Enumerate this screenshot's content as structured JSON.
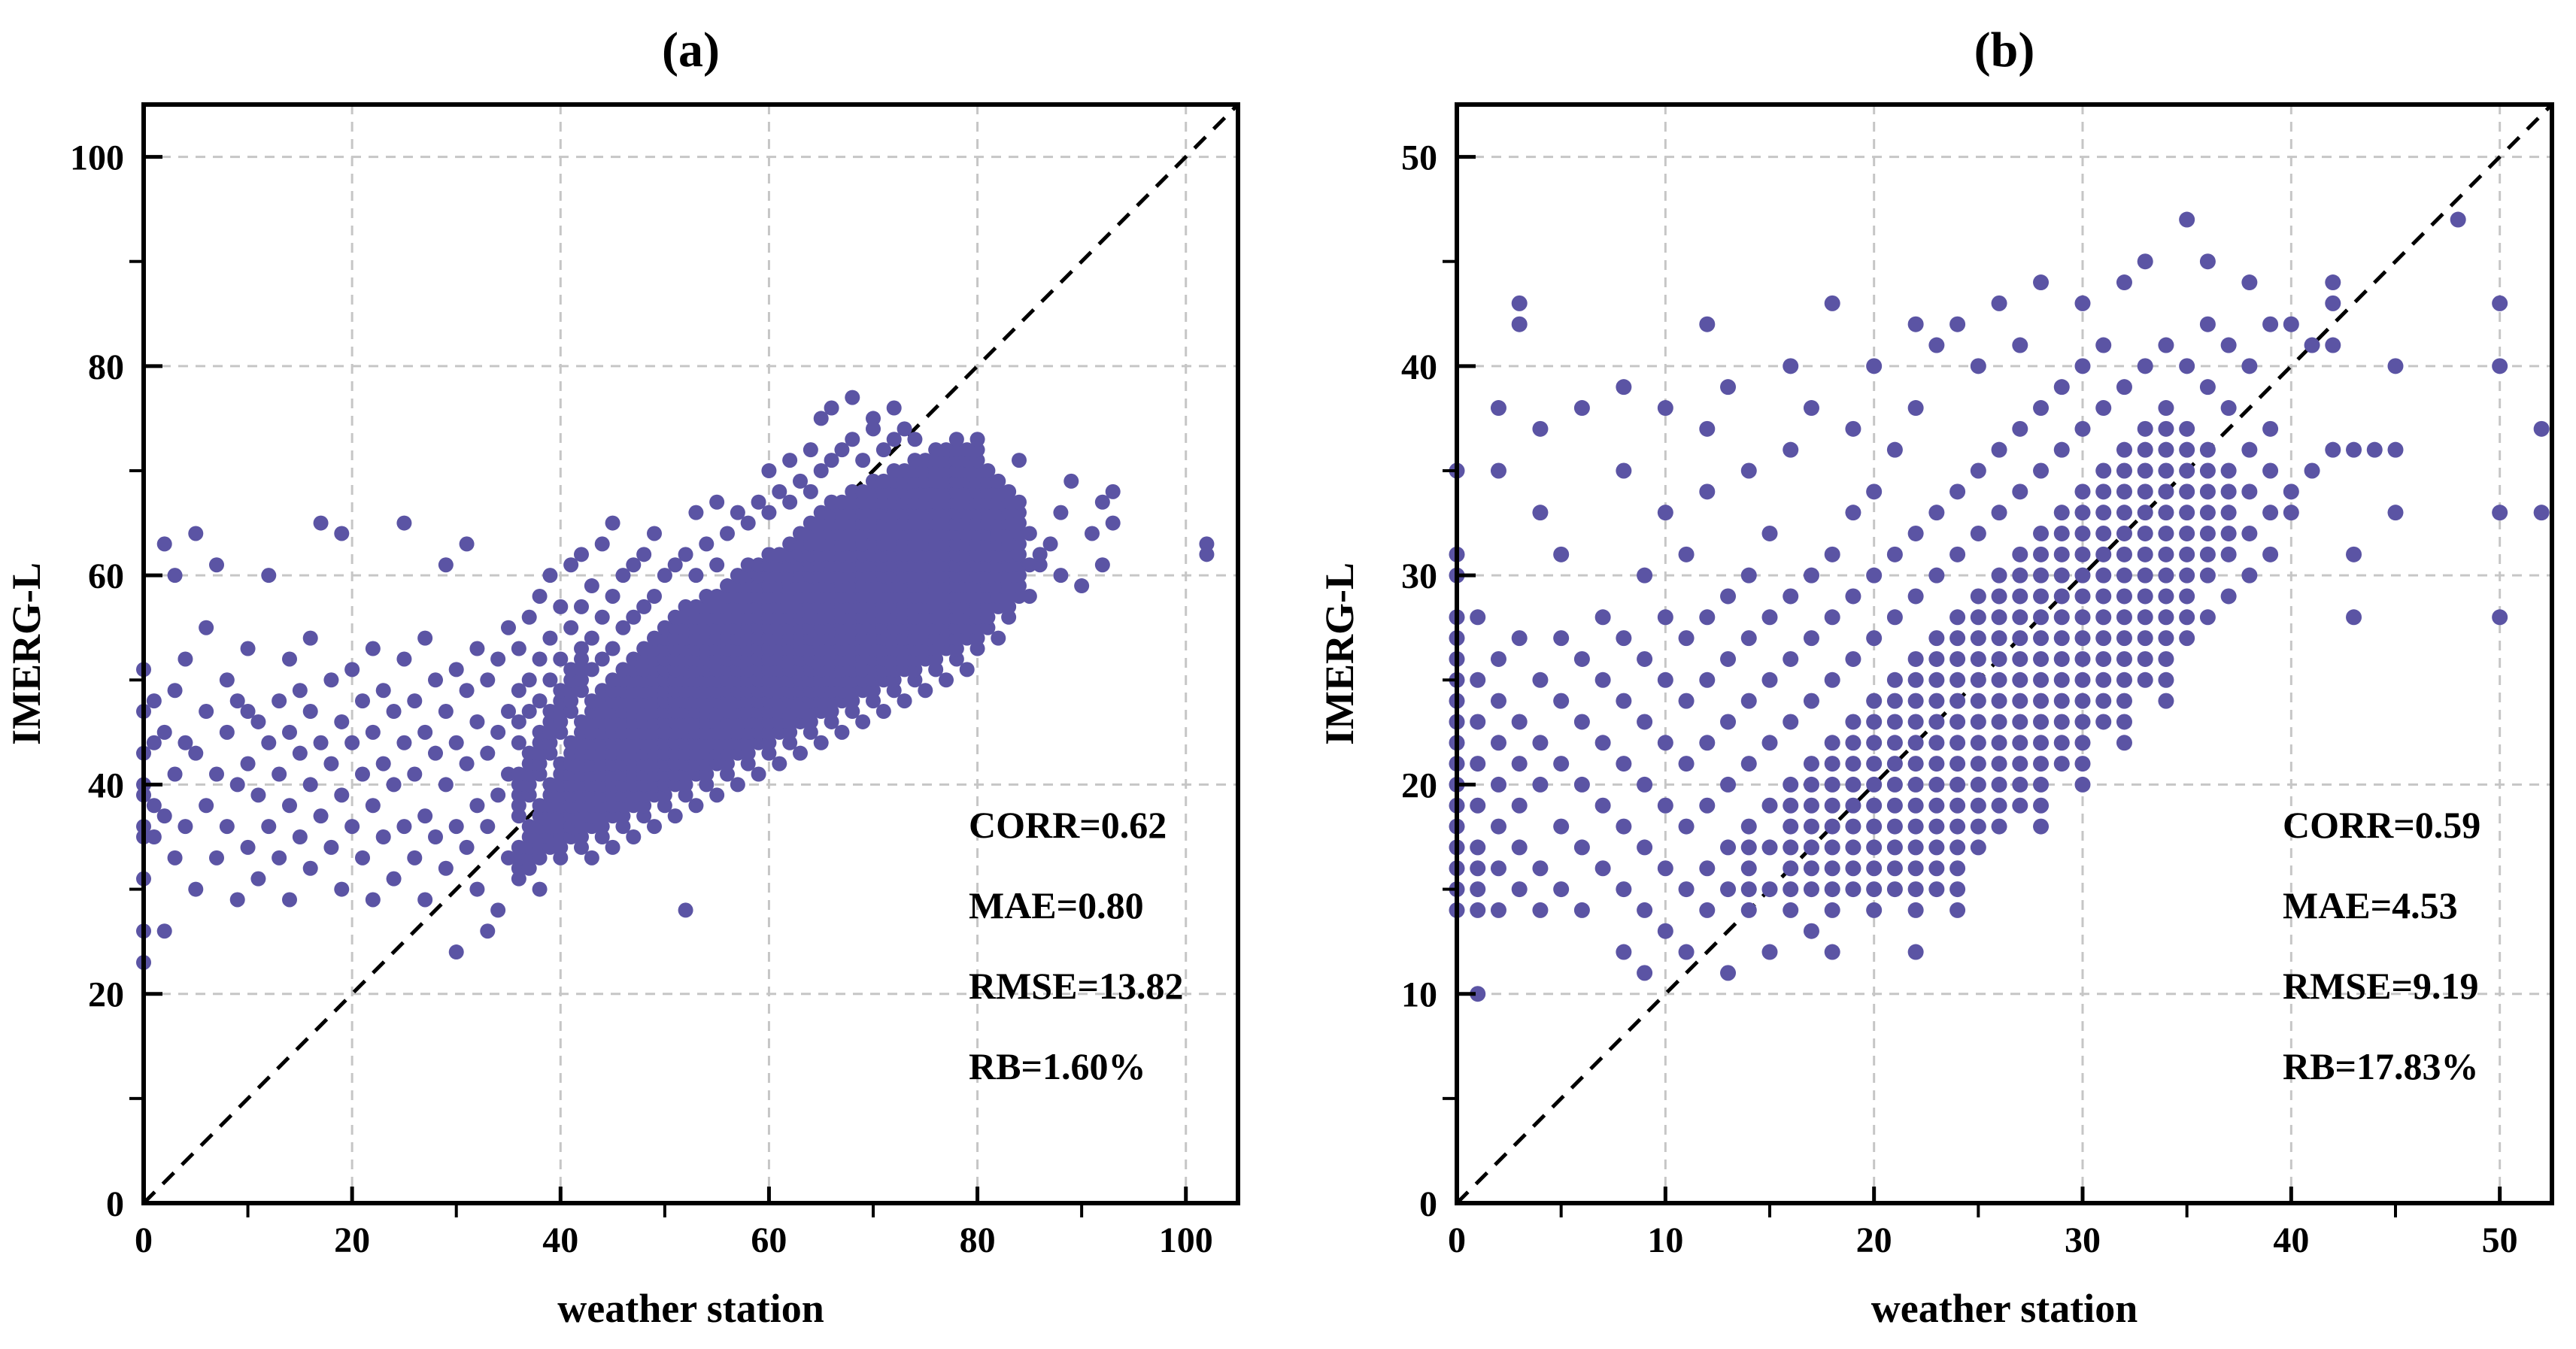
{
  "figure": {
    "background": "#ffffff",
    "description": "Two-panel scatter comparison of IMERG-L versus weather station values with 1:1 dashed reference line"
  },
  "chart_data": [
    {
      "type": "scatter",
      "panel": "a",
      "title": "(a)",
      "xlabel": "weather station",
      "ylabel": "IMERG-L",
      "xlim": [
        0,
        105
      ],
      "ylim": [
        0,
        105
      ],
      "xticks": [
        0,
        20,
        40,
        60,
        80,
        100
      ],
      "yticks": [
        0,
        20,
        40,
        60,
        80,
        100
      ],
      "minor_tick_step": 10,
      "grid": "dashed gray lines at major ticks",
      "grid_color": "#c6c6c6",
      "reference_line": {
        "type": "1:1 diagonal",
        "style": "dashed",
        "color": "#000000"
      },
      "marker": {
        "shape": "circle",
        "color": "#5b54a4",
        "radius_px": 10
      },
      "stats": {
        "CORR": 0.62,
        "MAE": 0.8,
        "RMSE": 13.82,
        "RB_percent": 1.6
      },
      "annotations": [
        "CORR=0.62",
        "MAE=0.80",
        "RMSE=13.82",
        "RB=1.60%"
      ],
      "annotation_anchor": "right-center of plot, starting at x=79 data units",
      "points_encoding": "columns: [x, y | [yStart,yEnd] ...] -> expands to integer (x,y) points",
      "columns": [
        [
          0,
          23,
          26,
          31,
          35,
          36,
          39,
          40,
          43,
          47,
          51
        ],
        [
          1,
          35,
          38,
          44,
          48
        ],
        [
          2,
          26,
          37,
          45,
          63
        ],
        [
          3,
          33,
          41,
          49,
          60
        ],
        [
          4,
          36,
          44,
          52
        ],
        [
          5,
          30,
          43,
          64
        ],
        [
          6,
          38,
          47,
          55
        ],
        [
          7,
          33,
          41,
          61
        ],
        [
          8,
          36,
          45,
          50
        ],
        [
          9,
          29,
          40,
          48
        ],
        [
          10,
          34,
          42,
          47,
          53
        ],
        [
          11,
          31,
          39,
          46
        ],
        [
          12,
          36,
          44,
          60
        ],
        [
          13,
          33,
          41,
          48
        ],
        [
          14,
          29,
          38,
          45,
          52
        ],
        [
          15,
          35,
          43,
          49
        ],
        [
          16,
          32,
          40,
          47,
          54
        ],
        [
          17,
          37,
          44,
          65
        ],
        [
          18,
          34,
          42,
          50
        ],
        [
          19,
          30,
          39,
          46,
          64
        ],
        [
          20,
          36,
          44,
          51
        ],
        [
          21,
          33,
          41,
          48
        ],
        [
          22,
          29,
          38,
          45,
          53
        ],
        [
          23,
          35,
          42,
          49
        ],
        [
          24,
          31,
          40,
          47
        ],
        [
          25,
          36,
          44,
          52,
          65
        ],
        [
          26,
          33,
          41,
          48
        ],
        [
          27,
          29,
          37,
          45,
          54
        ],
        [
          28,
          35,
          43,
          50
        ],
        [
          29,
          32,
          40,
          47,
          61
        ],
        [
          30,
          24,
          36,
          44,
          51
        ],
        [
          31,
          34,
          42,
          49,
          63
        ],
        [
          32,
          30,
          38,
          46,
          53
        ],
        [
          33,
          26,
          36,
          43,
          50
        ],
        [
          34,
          28,
          39,
          45,
          52
        ],
        [
          35,
          33,
          41,
          47,
          55
        ],
        [
          36,
          [
            31,
            34
          ],
          [
            37,
            41
          ],
          44,
          46,
          49,
          53
        ],
        [
          37,
          [
            32,
            36
          ],
          [
            39,
            43
          ],
          47,
          50,
          56
        ],
        [
          38,
          30,
          [
            33,
            38
          ],
          [
            41,
            45
          ],
          48,
          52,
          58
        ],
        [
          39,
          [
            34,
            40
          ],
          [
            43,
            47
          ],
          50,
          54,
          60
        ],
        [
          40,
          [
            33,
            42
          ],
          [
            45,
            49
          ],
          52,
          57
        ],
        [
          41,
          [
            35,
            44
          ],
          [
            47,
            51
          ],
          55,
          61
        ],
        [
          42,
          [
            34,
            46
          ],
          [
            49,
            53
          ],
          57,
          62
        ],
        [
          43,
          33,
          [
            36,
            48
          ],
          51,
          54,
          59
        ],
        [
          44,
          [
            35,
            49
          ],
          52,
          56,
          63
        ],
        [
          45,
          34,
          [
            37,
            50
          ],
          53,
          58,
          65
        ],
        [
          46,
          [
            36,
            51
          ],
          55,
          60
        ],
        [
          47,
          35,
          [
            38,
            52
          ],
          56,
          61
        ],
        [
          48,
          [
            37,
            53
          ],
          57,
          62
        ],
        [
          49,
          36,
          [
            39,
            54
          ],
          58,
          64
        ],
        [
          50,
          [
            38,
            55
          ],
          60
        ],
        [
          51,
          37,
          [
            40,
            56
          ],
          61
        ],
        [
          52,
          28,
          [
            39,
            57
          ],
          62
        ],
        [
          53,
          38,
          [
            41,
            57
          ],
          60,
          66
        ],
        [
          54,
          [
            40,
            58
          ],
          63
        ],
        [
          55,
          39,
          [
            42,
            58
          ],
          61,
          67
        ],
        [
          56,
          [
            41,
            59
          ],
          64
        ],
        [
          57,
          40,
          [
            43,
            60
          ],
          66
        ],
        [
          58,
          [
            42,
            61
          ],
          65
        ],
        [
          59,
          41,
          [
            44,
            61
          ],
          67
        ],
        [
          60,
          [
            43,
            62
          ],
          66,
          70
        ],
        [
          61,
          42,
          [
            45,
            62
          ],
          68
        ],
        [
          62,
          [
            44,
            63
          ],
          67,
          71
        ],
        [
          63,
          43,
          [
            46,
            64
          ],
          69
        ],
        [
          64,
          [
            45,
            65
          ],
          68,
          72
        ],
        [
          65,
          44,
          [
            47,
            66
          ],
          70,
          75
        ],
        [
          66,
          [
            46,
            67
          ],
          71,
          76
        ],
        [
          67,
          45,
          [
            48,
            67
          ],
          72
        ],
        [
          68,
          [
            47,
            68
          ],
          73,
          77
        ],
        [
          69,
          46,
          [
            49,
            68
          ],
          71
        ],
        [
          70,
          [
            48,
            69
          ],
          74,
          75
        ],
        [
          71,
          47,
          [
            50,
            69
          ],
          72
        ],
        [
          72,
          [
            49,
            70
          ],
          73,
          76
        ],
        [
          73,
          48,
          [
            51,
            70
          ],
          74
        ],
        [
          74,
          [
            50,
            71
          ],
          73
        ],
        [
          75,
          49,
          [
            52,
            71
          ]
        ],
        [
          76,
          [
            51,
            72
          ]
        ],
        [
          77,
          50,
          [
            53,
            72
          ]
        ],
        [
          78,
          [
            52,
            73
          ]
        ],
        [
          79,
          51,
          [
            54,
            72
          ]
        ],
        [
          80,
          [
            53,
            73
          ]
        ],
        [
          81,
          [
            55,
            70
          ]
        ],
        [
          82,
          54,
          [
            57,
            69
          ]
        ],
        [
          83,
          [
            56,
            68
          ]
        ],
        [
          84,
          [
            58,
            67
          ],
          71
        ],
        [
          85,
          58,
          61,
          64
        ],
        [
          86,
          61,
          62
        ],
        [
          87,
          63
        ],
        [
          88,
          60,
          66
        ],
        [
          89,
          69
        ],
        [
          90,
          59
        ],
        [
          91,
          64
        ],
        [
          92,
          61,
          67
        ],
        [
          93,
          65,
          68
        ],
        [
          102,
          62,
          63
        ]
      ]
    },
    {
      "type": "scatter",
      "panel": "b",
      "title": "(b)",
      "xlabel": "weather station",
      "ylabel": "IMERG-L",
      "xlim": [
        0,
        52.5
      ],
      "ylim": [
        0,
        52.5
      ],
      "xticks": [
        0,
        10,
        20,
        30,
        40,
        50
      ],
      "yticks": [
        0,
        10,
        20,
        30,
        40,
        50
      ],
      "minor_tick_step": 5,
      "grid": "dashed gray lines at major ticks",
      "grid_color": "#c6c6c6",
      "reference_line": {
        "type": "1:1 diagonal",
        "style": "dashed",
        "color": "#000000"
      },
      "marker": {
        "shape": "circle",
        "color": "#5b54a4",
        "radius_px": 10.5
      },
      "stats": {
        "CORR": 0.59,
        "MAE": 4.53,
        "RMSE": 9.19,
        "RB_percent": 17.83
      },
      "annotations": [
        "CORR=0.59",
        "MAE=4.53",
        "RMSE=9.19",
        "RB=17.83%"
      ],
      "annotation_anchor": "right-center of plot, starting at x=39.6 data units",
      "points_encoding": "columns: [x, y | [yStart,yEnd] ...] -> expands to integer (x,y) points",
      "columns": [
        [
          0,
          [
            14,
            28
          ],
          30,
          31,
          35
        ],
        [
          1,
          10,
          [
            14,
            17
          ],
          19,
          21,
          23,
          25,
          28
        ],
        [
          2,
          14,
          16,
          18,
          20,
          22,
          24,
          26,
          35,
          38
        ],
        [
          3,
          15,
          17,
          19,
          21,
          23,
          27,
          42,
          43
        ],
        [
          4,
          14,
          16,
          20,
          22,
          25,
          33,
          37
        ],
        [
          5,
          15,
          18,
          21,
          24,
          27,
          31
        ],
        [
          6,
          14,
          17,
          20,
          23,
          26,
          38
        ],
        [
          7,
          16,
          19,
          22,
          25,
          28
        ],
        [
          8,
          12,
          15,
          18,
          21,
          24,
          27,
          35,
          39
        ],
        [
          9,
          11,
          14,
          17,
          20,
          23,
          26,
          30
        ],
        [
          10,
          13,
          16,
          19,
          22,
          25,
          28,
          33,
          38
        ],
        [
          11,
          12,
          15,
          18,
          21,
          24,
          27,
          31
        ],
        [
          12,
          14,
          16,
          19,
          22,
          25,
          28,
          34,
          37,
          42
        ],
        [
          13,
          11,
          15,
          17,
          20,
          23,
          26,
          29,
          39
        ],
        [
          14,
          [
            14,
            18
          ],
          21,
          24,
          27,
          30,
          35
        ],
        [
          15,
          12,
          15,
          17,
          19,
          22,
          25,
          28,
          32
        ],
        [
          16,
          [
            14,
            20
          ],
          23,
          26,
          29,
          36,
          40
        ],
        [
          17,
          13,
          [
            15,
            21
          ],
          24,
          27,
          30,
          38
        ],
        [
          18,
          12,
          [
            14,
            22
          ],
          25,
          28,
          31,
          43
        ],
        [
          19,
          [
            15,
            23
          ],
          26,
          29,
          33,
          37
        ],
        [
          20,
          [
            14,
            24
          ],
          27,
          30,
          34,
          40
        ],
        [
          21,
          [
            15,
            25
          ],
          28,
          31,
          36
        ],
        [
          22,
          12,
          [
            14,
            26
          ],
          29,
          32,
          38,
          42
        ],
        [
          23,
          [
            15,
            27
          ],
          30,
          33,
          41
        ],
        [
          24,
          [
            14,
            28
          ],
          31,
          34,
          42
        ],
        [
          25,
          [
            17,
            29
          ],
          32,
          35,
          40
        ],
        [
          26,
          [
            18,
            30
          ],
          33,
          36,
          43
        ],
        [
          27,
          [
            19,
            31
          ],
          34,
          37,
          41
        ],
        [
          28,
          [
            18,
            32
          ],
          35,
          38,
          44
        ],
        [
          29,
          [
            21,
            33
          ],
          36,
          39
        ],
        [
          30,
          [
            20,
            34
          ],
          37,
          40,
          43
        ],
        [
          31,
          [
            23,
            35
          ],
          38,
          41
        ],
        [
          32,
          [
            22,
            36
          ],
          39,
          44
        ],
        [
          33,
          [
            25,
            37
          ],
          40,
          45
        ],
        [
          34,
          [
            24,
            38
          ],
          41
        ],
        [
          35,
          [
            27,
            37
          ],
          40,
          47
        ],
        [
          36,
          28,
          [
            30,
            36
          ],
          39,
          42,
          45
        ],
        [
          37,
          29,
          [
            31,
            35
          ],
          38,
          41
        ],
        [
          38,
          30,
          32,
          34,
          36,
          40,
          44
        ],
        [
          39,
          31,
          33,
          35,
          37,
          42
        ],
        [
          40,
          33,
          34,
          42
        ],
        [
          41,
          35,
          41
        ],
        [
          42,
          36,
          41,
          43,
          44
        ],
        [
          43,
          28,
          31,
          36
        ],
        [
          44,
          36
        ],
        [
          45,
          33,
          36,
          40
        ],
        [
          48,
          47
        ],
        [
          50,
          28,
          33,
          40,
          43
        ],
        [
          52,
          33,
          37
        ]
      ]
    }
  ]
}
